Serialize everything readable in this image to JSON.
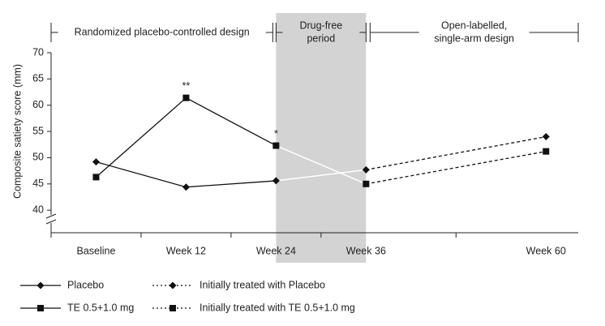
{
  "chart_data": {
    "type": "line",
    "y_label": "Composite satiety score (mm)",
    "phases": [
      [
        "Randomized placebo-controlled design"
      ],
      [
        "Drug-free",
        "period"
      ],
      [
        "Open-labelled,",
        "single-arm design"
      ]
    ],
    "shaded_region": [
      24,
      36
    ],
    "x": [
      0,
      12,
      24,
      36,
      60
    ],
    "xlim": [
      -6,
      64.3
    ],
    "xticks": [
      {
        "value": 0,
        "label": "Baseline"
      },
      {
        "value": 12,
        "label": "Week 12"
      },
      {
        "value": 24,
        "label": "Week 24"
      },
      {
        "value": 36,
        "label": "Week 36"
      },
      {
        "value": 60,
        "label": "Week 60"
      }
    ],
    "ylim": [
      35.7,
      70
    ],
    "yticks": [
      40,
      45,
      50,
      55,
      60,
      65,
      70
    ],
    "series": [
      {
        "name": "Placebo",
        "color": "#111111",
        "marker": "diamond",
        "dash": false,
        "values": [
          49.2,
          44.4,
          45.6,
          null,
          null
        ]
      },
      {
        "name": "TE 0.5+1.0 mg",
        "color": "#111111",
        "marker": "square",
        "dash": false,
        "values": [
          46.3,
          61.4,
          52.3,
          null,
          null
        ]
      },
      {
        "name": "Initially treated with Placebo",
        "color": "#111111",
        "marker": "diamond",
        "dash": true,
        "values": [
          null,
          null,
          null,
          47.7,
          54.0
        ]
      },
      {
        "name": "Initially treated with TE 0.5+1.0 mg",
        "color": "#111111",
        "marker": "square",
        "dash": true,
        "values": [
          null,
          null,
          null,
          45.0,
          51.2
        ]
      }
    ],
    "connectors": [
      [
        0,
        2
      ],
      [
        1,
        3
      ]
    ],
    "annotations": [
      {
        "text": "**",
        "x": 12,
        "series": 1
      },
      {
        "text": "*",
        "x": 24,
        "series": 1
      }
    ]
  }
}
